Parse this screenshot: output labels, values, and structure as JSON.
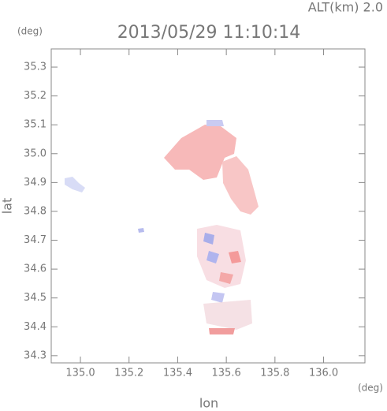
{
  "chart_data": {
    "type": "map",
    "title": "2013/05/29 11:10:14",
    "annotation": "ALT(km) 2.0",
    "y_unit": "(deg)",
    "x_unit": "(deg)",
    "xlabel": "lon",
    "ylabel": "lat",
    "xlim": [
      134.88,
      136.17
    ],
    "ylim": [
      34.275,
      35.363
    ],
    "xticks": [
      {
        "value": 135,
        "label": "135.0"
      },
      135.2,
      135.4,
      135.6,
      135.8,
      {
        "value": 136,
        "label": "136.0"
      }
    ],
    "yticks": [
      34.3,
      34.4,
      34.5,
      34.6,
      34.7,
      34.8,
      34.9,
      {
        "value": 35,
        "label": "35.0"
      },
      35.1,
      35.2,
      35.3
    ]
  }
}
